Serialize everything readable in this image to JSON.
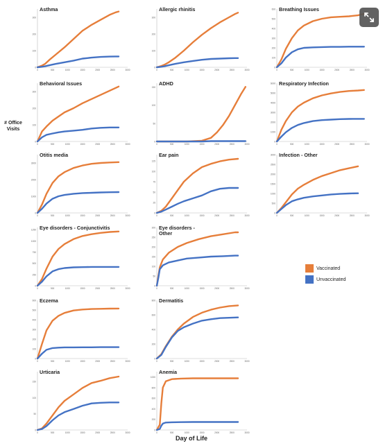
{
  "figure": {
    "ylabel": "# Office Visits",
    "xlabel": "Day of Life",
    "colors": {
      "vaccinated": "#E67E3A",
      "unvaccinated": "#4472C4"
    },
    "expand_icon": "expand-icon"
  },
  "legend": {
    "placement": "right",
    "items": [
      {
        "label": "Vaccinated",
        "color": "#E67E3A"
      },
      {
        "label": "Unvaccinated",
        "color": "#4472C4"
      }
    ]
  },
  "chart_data": [
    {
      "type": "line",
      "title": "Asthma",
      "xlim": [
        0,
        3000
      ],
      "ylim": [
        0,
        350
      ],
      "x": [
        0,
        150,
        250,
        400,
        600,
        900,
        1200,
        1500,
        1800,
        2100,
        2400,
        2600,
        2700
      ],
      "series": [
        {
          "name": "Vaccinated",
          "values": [
            0,
            10,
            20,
            45,
            75,
            120,
            170,
            220,
            255,
            285,
            315,
            330,
            335
          ]
        },
        {
          "name": "Unvaccinated",
          "values": [
            0,
            3,
            6,
            12,
            20,
            30,
            40,
            52,
            58,
            62,
            64,
            65,
            65
          ]
        }
      ]
    },
    {
      "type": "line",
      "title": "Allergic rhinitis",
      "xlim": [
        0,
        3000
      ],
      "ylim": [
        0,
        350
      ],
      "x": [
        0,
        150,
        250,
        400,
        600,
        900,
        1200,
        1500,
        1800,
        2100,
        2400,
        2600,
        2700
      ],
      "series": [
        {
          "name": "Vaccinated",
          "values": [
            0,
            8,
            15,
            30,
            55,
            100,
            150,
            195,
            235,
            270,
            300,
            320,
            328
          ]
        },
        {
          "name": "Unvaccinated",
          "values": [
            0,
            3,
            6,
            12,
            20,
            30,
            38,
            45,
            50,
            52,
            54,
            55,
            55
          ]
        }
      ]
    },
    {
      "type": "line",
      "title": "Breathing Issues",
      "xlim": [
        0,
        3000
      ],
      "ylim": [
        0,
        600
      ],
      "x": [
        0,
        150,
        300,
        500,
        700,
        900,
        1200,
        1500,
        1800,
        2100,
        2400,
        2700,
        2900
      ],
      "series": [
        {
          "name": "Vaccinated",
          "values": [
            0,
            80,
            190,
            300,
            380,
            430,
            475,
            500,
            515,
            520,
            525,
            535,
            550
          ]
        },
        {
          "name": "Unvaccinated",
          "values": [
            0,
            40,
            100,
            155,
            185,
            200,
            205,
            208,
            210,
            210,
            212,
            212,
            212
          ]
        }
      ]
    },
    {
      "type": "line",
      "title": "Behavioral Issues",
      "xlim": [
        0,
        3000
      ],
      "ylim": [
        0,
        350
      ],
      "x": [
        0,
        150,
        300,
        500,
        700,
        900,
        1200,
        1500,
        1800,
        2100,
        2400,
        2700
      ],
      "series": [
        {
          "name": "Vaccinated",
          "values": [
            0,
            60,
            90,
            125,
            150,
            175,
            200,
            230,
            255,
            280,
            305,
            330
          ]
        },
        {
          "name": "Unvaccinated",
          "values": [
            0,
            25,
            40,
            48,
            55,
            60,
            65,
            70,
            78,
            82,
            84,
            84
          ]
        }
      ]
    },
    {
      "type": "line",
      "title": "ADHD",
      "xlim": [
        0,
        3000
      ],
      "ylim": [
        0,
        160
      ],
      "x": [
        0,
        500,
        1000,
        1500,
        1800,
        2000,
        2200,
        2400,
        2600,
        2800,
        2950
      ],
      "series": [
        {
          "name": "Vaccinated",
          "values": [
            0,
            0,
            0,
            2,
            10,
            25,
            45,
            70,
            100,
            130,
            150
          ]
        },
        {
          "name": "Unvaccinated",
          "values": [
            0,
            0,
            0,
            0,
            1,
            1,
            1,
            1,
            1,
            1,
            1
          ]
        }
      ]
    },
    {
      "type": "line",
      "title": "Respiratory Infection",
      "xlim": [
        0,
        3000
      ],
      "ylim": [
        0,
        6000
      ],
      "x": [
        0,
        150,
        300,
        500,
        700,
        900,
        1200,
        1500,
        1800,
        2100,
        2400,
        2700,
        2900
      ],
      "series": [
        {
          "name": "Vaccinated",
          "values": [
            0,
            1200,
            2100,
            3000,
            3600,
            4000,
            4450,
            4750,
            4950,
            5100,
            5200,
            5250,
            5300
          ]
        },
        {
          "name": "Unvaccinated",
          "values": [
            0,
            500,
            950,
            1400,
            1700,
            1900,
            2100,
            2200,
            2250,
            2300,
            2320,
            2330,
            2330
          ]
        }
      ]
    },
    {
      "type": "line",
      "title": "Otitis media",
      "xlim": [
        0,
        3000
      ],
      "ylim": [
        0,
        3500
      ],
      "x": [
        0,
        150,
        300,
        500,
        700,
        900,
        1200,
        1500,
        1800,
        2100,
        2400,
        2700
      ],
      "series": [
        {
          "name": "Vaccinated",
          "values": [
            0,
            500,
            1150,
            1800,
            2200,
            2450,
            2700,
            2850,
            2950,
            3000,
            3030,
            3050
          ]
        },
        {
          "name": "Unvaccinated",
          "values": [
            0,
            250,
            560,
            850,
            1000,
            1080,
            1150,
            1190,
            1210,
            1230,
            1240,
            1250
          ]
        }
      ]
    },
    {
      "type": "line",
      "title": "Ear pain",
      "xlim": [
        0,
        3000
      ],
      "ylim": [
        0,
        140
      ],
      "x": [
        0,
        150,
        300,
        500,
        700,
        900,
        1200,
        1500,
        1800,
        2100,
        2400,
        2700
      ],
      "series": [
        {
          "name": "Vaccinated",
          "values": [
            0,
            5,
            15,
            35,
            55,
            75,
            95,
            110,
            118,
            124,
            128,
            130
          ]
        },
        {
          "name": "Unvaccinated",
          "values": [
            0,
            3,
            8,
            15,
            22,
            28,
            35,
            42,
            52,
            58,
            60,
            60
          ]
        }
      ]
    },
    {
      "type": "line",
      "title": "Infection - Other",
      "xlim": [
        0,
        3000
      ],
      "ylim": [
        0,
        3000
      ],
      "x": [
        0,
        150,
        300,
        500,
        700,
        900,
        1200,
        1500,
        1800,
        2100,
        2400,
        2700
      ],
      "series": [
        {
          "name": "Vaccinated",
          "values": [
            0,
            250,
            550,
            950,
            1250,
            1450,
            1700,
            1900,
            2050,
            2200,
            2300,
            2400
          ]
        },
        {
          "name": "Unvaccinated",
          "values": [
            0,
            200,
            400,
            600,
            700,
            780,
            850,
            900,
            950,
            980,
            1000,
            1010
          ]
        }
      ]
    },
    {
      "type": "line",
      "title": "Eye disorders - Conjunctivitis",
      "xlim": [
        0,
        3000
      ],
      "ylim": [
        0,
        1300
      ],
      "x": [
        0,
        150,
        300,
        500,
        700,
        900,
        1200,
        1500,
        1800,
        2100,
        2400,
        2700
      ],
      "series": [
        {
          "name": "Vaccinated",
          "values": [
            0,
            150,
            380,
            650,
            820,
            930,
            1040,
            1110,
            1150,
            1180,
            1200,
            1210
          ]
        },
        {
          "name": "Unvaccinated",
          "values": [
            0,
            90,
            210,
            320,
            370,
            395,
            410,
            415,
            420,
            420,
            420,
            420
          ]
        }
      ]
    },
    {
      "type": "line",
      "title": "Eye disorders - Other",
      "xlim": [
        0,
        3000
      ],
      "ylim": [
        0,
        300
      ],
      "x": [
        0,
        50,
        100,
        200,
        400,
        700,
        1000,
        1400,
        1800,
        2200,
        2600,
        2700
      ],
      "series": [
        {
          "name": "Vaccinated",
          "values": [
            0,
            50,
            95,
            135,
            170,
            200,
            220,
            240,
            255,
            265,
            275,
            275
          ]
        },
        {
          "name": "Unvaccinated",
          "values": [
            0,
            40,
            85,
            105,
            120,
            130,
            140,
            145,
            150,
            152,
            155,
            155
          ]
        }
      ]
    },
    {
      "type": "line",
      "title": "Eczema",
      "xlim": [
        0,
        3000
      ],
      "ylim": [
        0,
        600
      ],
      "x": [
        0,
        150,
        300,
        500,
        700,
        900,
        1200,
        1500,
        1800,
        2100,
        2400,
        2700
      ],
      "series": [
        {
          "name": "Vaccinated",
          "values": [
            0,
            150,
            290,
            390,
            440,
            470,
            495,
            505,
            510,
            512,
            514,
            515
          ]
        },
        {
          "name": "Unvaccinated",
          "values": [
            0,
            50,
            90,
            108,
            112,
            115,
            115,
            116,
            116,
            117,
            117,
            117
          ]
        }
      ]
    },
    {
      "type": "line",
      "title": "Dermatitis",
      "xlim": [
        0,
        3000
      ],
      "ylim": [
        0,
        800
      ],
      "x": [
        0,
        150,
        300,
        500,
        700,
        900,
        1200,
        1500,
        1800,
        2100,
        2400,
        2700
      ],
      "series": [
        {
          "name": "Vaccinated",
          "values": [
            0,
            60,
            170,
            300,
            400,
            480,
            570,
            630,
            670,
            700,
            720,
            730
          ]
        },
        {
          "name": "Unvaccinated",
          "values": [
            0,
            50,
            160,
            290,
            380,
            430,
            480,
            520,
            540,
            555,
            560,
            565
          ]
        }
      ]
    },
    {
      "type": "line",
      "title": "Urticaria",
      "xlim": [
        0,
        3000
      ],
      "ylim": [
        0,
        180
      ],
      "x": [
        0,
        150,
        300,
        500,
        700,
        900,
        1200,
        1500,
        1800,
        2100,
        2400,
        2700
      ],
      "series": [
        {
          "name": "Vaccinated",
          "values": [
            0,
            5,
            20,
            45,
            70,
            90,
            110,
            130,
            145,
            152,
            160,
            165
          ]
        },
        {
          "name": "Unvaccinated",
          "values": [
            0,
            3,
            12,
            30,
            45,
            55,
            65,
            75,
            82,
            84,
            85,
            85
          ]
        }
      ]
    },
    {
      "type": "line",
      "title": "Anemia",
      "xlim": [
        0,
        3000
      ],
      "ylim": [
        0,
        1100
      ],
      "x": [
        0,
        100,
        150,
        200,
        300,
        500,
        800,
        1200,
        1800,
        2400,
        2700
      ],
      "series": [
        {
          "name": "Vaccinated",
          "values": [
            0,
            100,
            500,
            800,
            920,
            960,
            970,
            975,
            975,
            975,
            975
          ]
        },
        {
          "name": "Unvaccinated",
          "values": [
            0,
            20,
            80,
            120,
            140,
            145,
            148,
            150,
            150,
            150,
            150
          ]
        }
      ]
    }
  ]
}
